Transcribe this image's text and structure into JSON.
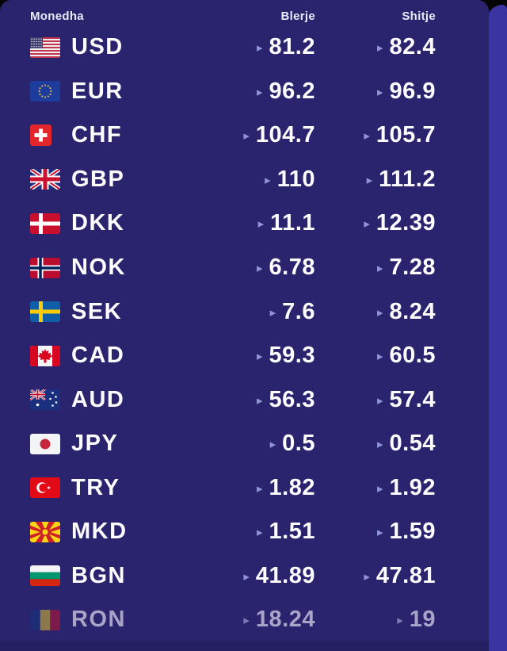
{
  "widget": {
    "headers": {
      "currency": "Monedha",
      "buy": "Blerje",
      "sell": "Shitje"
    },
    "arrow_icon": "▸",
    "rows": [
      {
        "code": "USD",
        "flag": "us",
        "buy": "81.2",
        "sell": "82.4",
        "faded": false
      },
      {
        "code": "EUR",
        "flag": "eu",
        "buy": "96.2",
        "sell": "96.9",
        "faded": false
      },
      {
        "code": "CHF",
        "flag": "ch",
        "buy": "104.7",
        "sell": "105.7",
        "faded": false
      },
      {
        "code": "GBP",
        "flag": "gb",
        "buy": "110",
        "sell": "111.2",
        "faded": false
      },
      {
        "code": "DKK",
        "flag": "dk",
        "buy": "11.1",
        "sell": "12.39",
        "faded": false
      },
      {
        "code": "NOK",
        "flag": "no",
        "buy": "6.78",
        "sell": "7.28",
        "faded": false
      },
      {
        "code": "SEK",
        "flag": "se",
        "buy": "7.6",
        "sell": "8.24",
        "faded": false
      },
      {
        "code": "CAD",
        "flag": "ca",
        "buy": "59.3",
        "sell": "60.5",
        "faded": false
      },
      {
        "code": "AUD",
        "flag": "au",
        "buy": "56.3",
        "sell": "57.4",
        "faded": false
      },
      {
        "code": "JPY",
        "flag": "jp",
        "buy": "0.5",
        "sell": "0.54",
        "faded": false
      },
      {
        "code": "TRY",
        "flag": "tr",
        "buy": "1.82",
        "sell": "1.92",
        "faded": false
      },
      {
        "code": "MKD",
        "flag": "mk",
        "buy": "1.51",
        "sell": "1.59",
        "faded": false
      },
      {
        "code": "BGN",
        "flag": "bg",
        "buy": "41.89",
        "sell": "47.81",
        "faded": false
      },
      {
        "code": "RON",
        "flag": "ro",
        "buy": "18.24",
        "sell": "19",
        "faded": true
      }
    ],
    "colors": {
      "panel_bg": "#2A246E",
      "edge_strip": "#3A34A2",
      "bottom_band": "#242061",
      "header_text": "#E9E9F7",
      "value_text": "#FCFCFF",
      "arrow": "#9094D4",
      "faded_text": "#A7A4C8"
    }
  }
}
